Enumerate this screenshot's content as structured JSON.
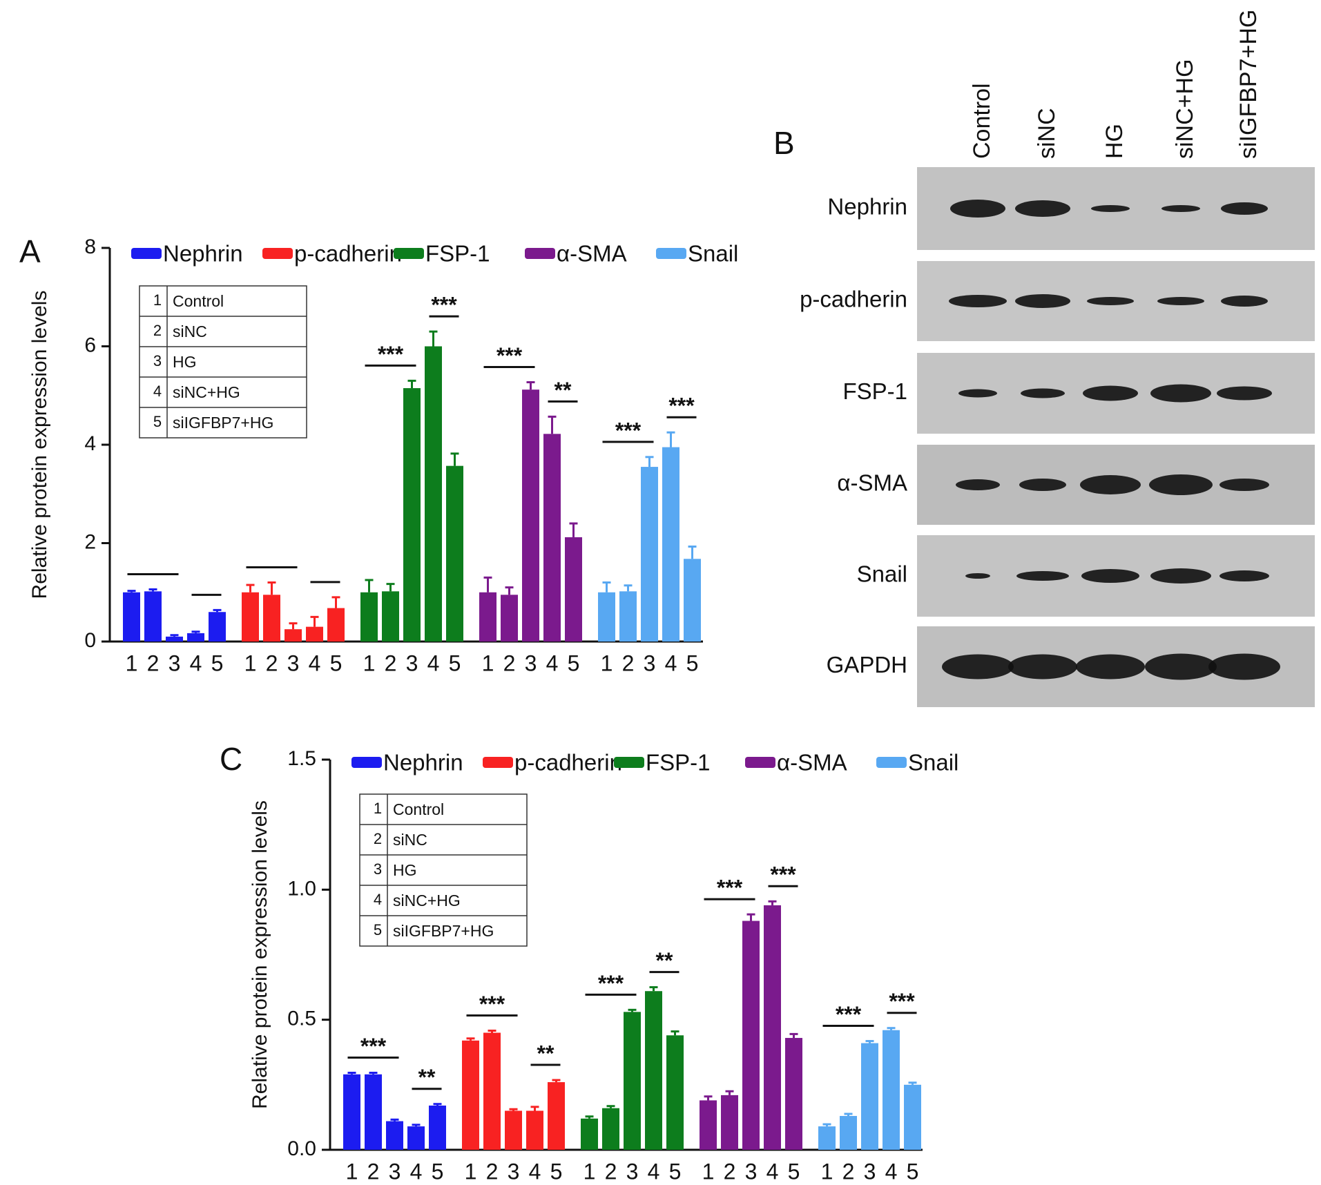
{
  "chart_data": [
    {
      "type": "bar",
      "panel": "A",
      "ylabel": "Relative protein expression levels",
      "categories": [
        "1",
        "2",
        "3",
        "4",
        "5"
      ],
      "ylim": [
        0,
        8
      ],
      "yticks": [
        0,
        2,
        4,
        6,
        8
      ],
      "series": [
        {
          "name": "Nephrin",
          "color": "#1c1cf0",
          "values": [
            1.0,
            1.02,
            0.1,
            0.17,
            0.6
          ],
          "errors": [
            0.03,
            0.04,
            0.03,
            0.03,
            0.04
          ]
        },
        {
          "name": "p-cadherin",
          "color": "#f82222",
          "values": [
            1.0,
            0.95,
            0.25,
            0.3,
            0.68
          ],
          "errors": [
            0.15,
            0.25,
            0.12,
            0.2,
            0.22
          ]
        },
        {
          "name": "FSP-1",
          "color": "#0d7d1d",
          "values": [
            1.0,
            1.02,
            5.15,
            6.0,
            3.57
          ],
          "errors": [
            0.25,
            0.15,
            0.15,
            0.3,
            0.25
          ]
        },
        {
          "name": "α-SMA",
          "color": "#7b1a8d",
          "values": [
            1.0,
            0.95,
            5.12,
            4.22,
            2.12
          ],
          "errors": [
            0.3,
            0.15,
            0.15,
            0.35,
            0.28
          ]
        },
        {
          "name": "Snail",
          "color": "#58a8f2",
          "values": [
            1.0,
            1.02,
            3.55,
            3.95,
            1.68
          ],
          "errors": [
            0.2,
            0.12,
            0.2,
            0.3,
            0.25
          ]
        }
      ],
      "group_table": [
        {
          "number": "1",
          "label": "Control"
        },
        {
          "number": "2",
          "label": "siNC"
        },
        {
          "number": "3",
          "label": "HG"
        },
        {
          "number": "4",
          "label": "siNC+HG"
        },
        {
          "number": "5",
          "label": "siIGFBP7+HG"
        }
      ],
      "annotations": [
        {
          "series": 0,
          "from": 0,
          "to": 2
        },
        {
          "series": 0,
          "from": 3,
          "to": 4
        },
        {
          "series": 1,
          "from": 0,
          "to": 2
        },
        {
          "series": 1,
          "from": 3,
          "to": 4
        },
        {
          "series": 2,
          "from": 0,
          "to": 2,
          "label": "***"
        },
        {
          "series": 2,
          "from": 3,
          "to": 4,
          "label": "***"
        },
        {
          "series": 3,
          "from": 0,
          "to": 2,
          "label": "***"
        },
        {
          "series": 3,
          "from": 3,
          "to": 4,
          "label": "**"
        },
        {
          "series": 4,
          "from": 0,
          "to": 2,
          "label": "***"
        },
        {
          "series": 4,
          "from": 3,
          "to": 4,
          "label": "***"
        }
      ]
    },
    {
      "type": "bar",
      "panel": "C",
      "ylabel": "Relative protein expression levels",
      "categories": [
        "1",
        "2",
        "3",
        "4",
        "5"
      ],
      "ylim": [
        0,
        1.5
      ],
      "yticks": [
        {
          "value": 0,
          "label": "0.0"
        },
        0.5,
        {
          "value": 1,
          "label": "1.0"
        },
        1.5
      ],
      "series": [
        {
          "name": "Nephrin",
          "color": "#1c1cf0",
          "values": [
            0.29,
            0.29,
            0.11,
            0.09,
            0.17
          ],
          "errors": [
            0.006,
            0.006,
            0.006,
            0.006,
            0.006
          ]
        },
        {
          "name": "p-cadherin",
          "color": "#f82222",
          "values": [
            0.42,
            0.45,
            0.15,
            0.15,
            0.26
          ],
          "errors": [
            0.008,
            0.008,
            0.006,
            0.015,
            0.008
          ]
        },
        {
          "name": "FSP-1",
          "color": "#0d7d1d",
          "values": [
            0.12,
            0.16,
            0.53,
            0.61,
            0.44
          ],
          "errors": [
            0.008,
            0.008,
            0.008,
            0.015,
            0.015
          ]
        },
        {
          "name": "α-SMA",
          "color": "#7b1a8d",
          "values": [
            0.19,
            0.21,
            0.88,
            0.94,
            0.43
          ],
          "errors": [
            0.015,
            0.015,
            0.025,
            0.015,
            0.015
          ]
        },
        {
          "name": "Snail",
          "color": "#58a8f2",
          "values": [
            0.09,
            0.13,
            0.41,
            0.46,
            0.25
          ],
          "errors": [
            0.008,
            0.008,
            0.008,
            0.008,
            0.008
          ]
        }
      ],
      "group_table": [
        {
          "number": "1",
          "label": "Control"
        },
        {
          "number": "2",
          "label": "siNC"
        },
        {
          "number": "3",
          "label": "HG"
        },
        {
          "number": "4",
          "label": "siNC+HG"
        },
        {
          "number": "5",
          "label": "siIGFBP7+HG"
        }
      ],
      "annotations": [
        {
          "series": 0,
          "from": 0,
          "to": 2,
          "label": "***"
        },
        {
          "series": 0,
          "from": 3,
          "to": 4,
          "label": "**"
        },
        {
          "series": 1,
          "from": 0,
          "to": 2,
          "label": "***"
        },
        {
          "series": 1,
          "from": 3,
          "to": 4,
          "label": "**"
        },
        {
          "series": 2,
          "from": 0,
          "to": 2,
          "label": "***"
        },
        {
          "series": 2,
          "from": 3,
          "to": 4,
          "label": "**"
        },
        {
          "series": 3,
          "from": 0,
          "to": 2,
          "label": "***"
        },
        {
          "series": 3,
          "from": 3,
          "to": 4,
          "label": "***"
        },
        {
          "series": 4,
          "from": 0,
          "to": 2,
          "label": "***"
        },
        {
          "series": 4,
          "from": 3,
          "to": 4,
          "label": "***"
        }
      ]
    }
  ],
  "blot": {
    "panel": "B",
    "lanes": [
      "Control",
      "siNC",
      "HG",
      "siNC+HG",
      "siIGFBP7+HG"
    ],
    "proteins": [
      "Nephrin",
      "p-cadherin",
      "FSP-1",
      "α-SMA",
      "Snail",
      "GAPDH"
    ]
  }
}
